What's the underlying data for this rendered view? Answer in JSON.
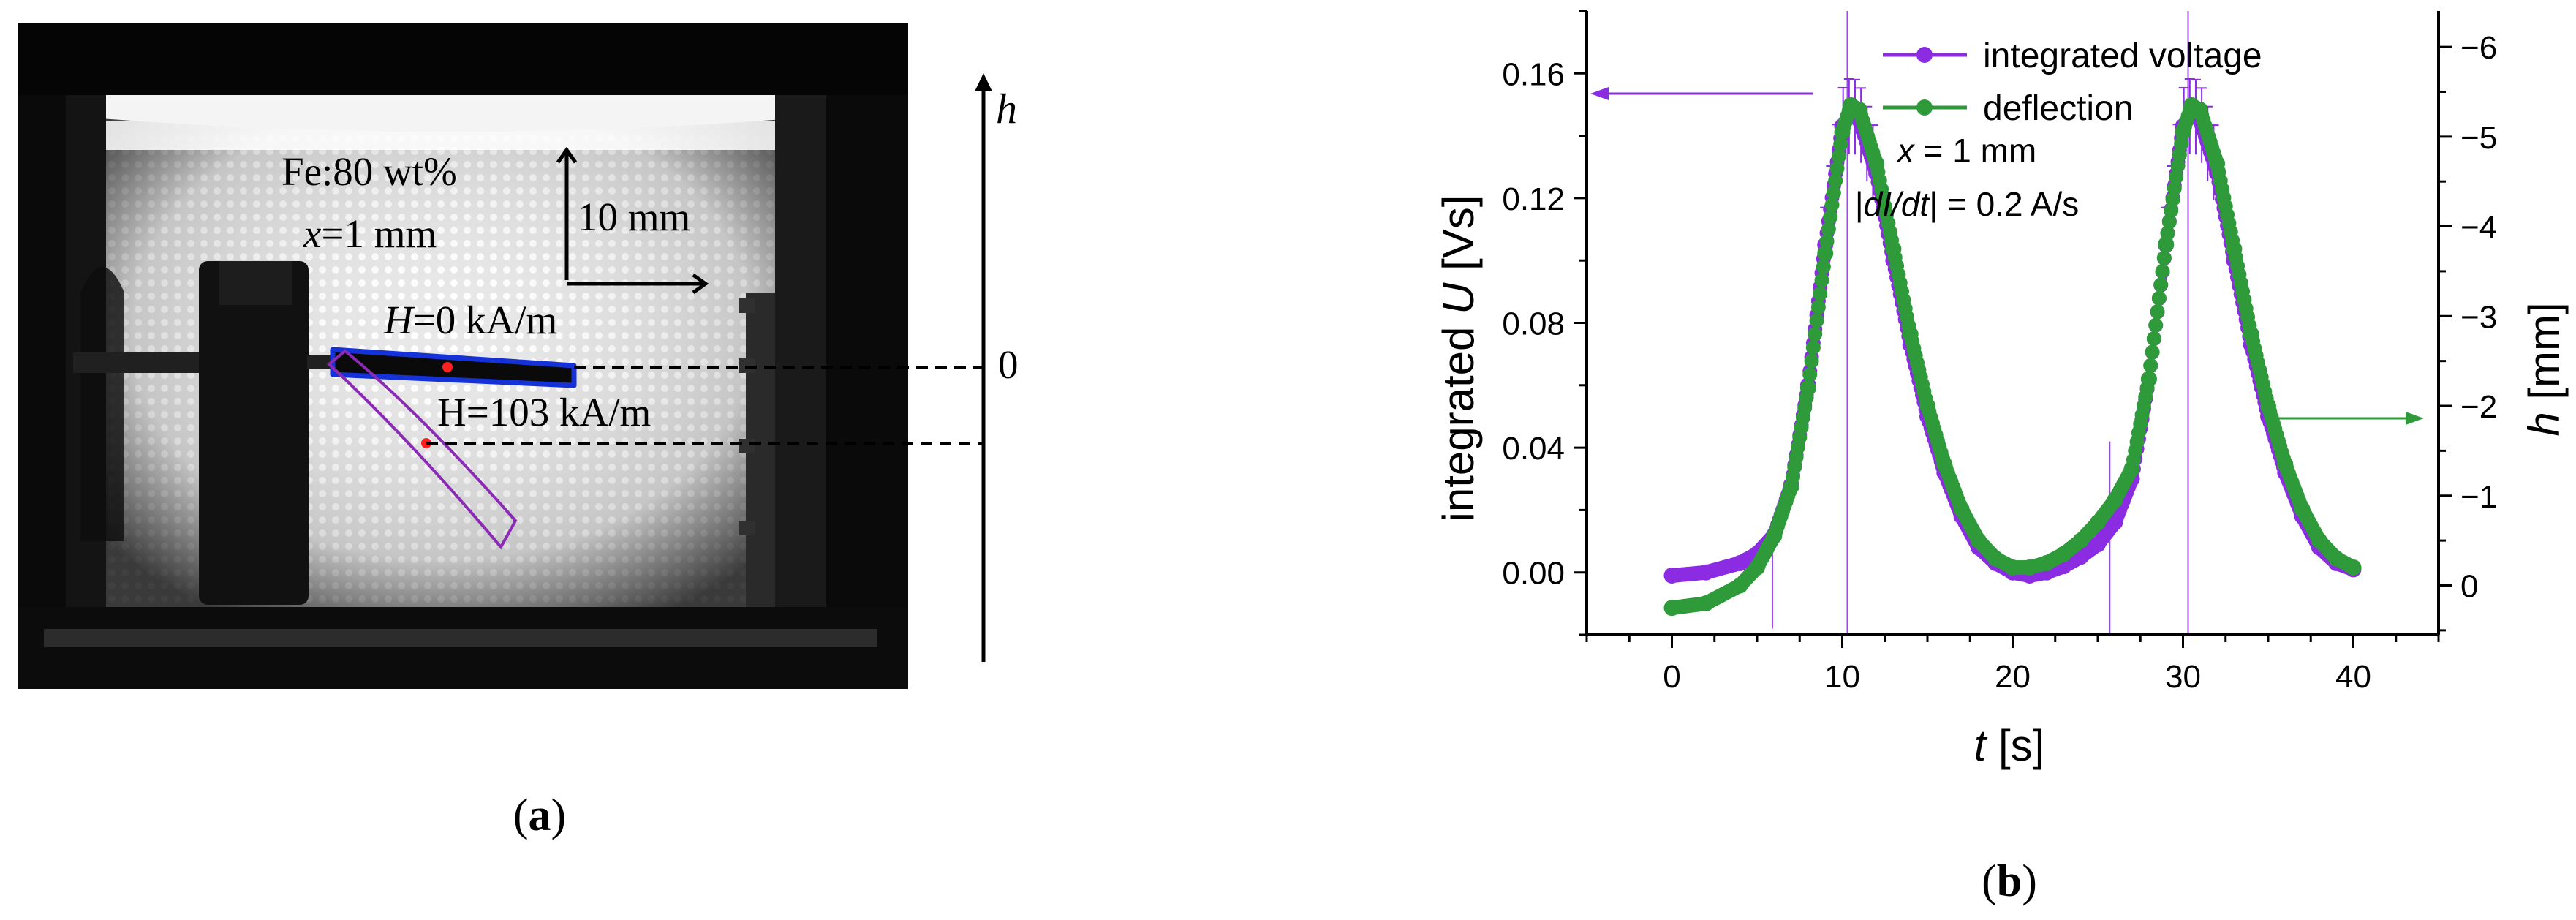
{
  "panel_a": {
    "label": "(a)",
    "material_line1": "Fe:80 wt%",
    "material_line2_var": "x",
    "material_line2_rest": "=1 mm",
    "scale_label": "10 mm",
    "field_zero_var": "H",
    "field_zero_rest": "=0 kA/m",
    "field_high": "H=103 kA/m",
    "axis_var": "h",
    "axis_zero": "0"
  },
  "panel_b": {
    "label": "(b)",
    "annotation_line1_var": "x",
    "annotation_line1_rest": " = 1 mm",
    "annotation_line2_pre": "|",
    "annotation_line2_var": "dI/dt",
    "annotation_line2_rest": "| = 0.2 A/s"
  },
  "chart_data": {
    "type": "line",
    "xlabel_var": "t",
    "xlabel_unit": " [s]",
    "ylabel_left_pre": "integrated ",
    "ylabel_left_var": "U",
    "ylabel_left_unit": " [Vs]",
    "ylabel_right_var": "h",
    "ylabel_right_unit": " [mm]",
    "xlim": [
      -5,
      45
    ],
    "ylim_left": [
      -0.02,
      0.18
    ],
    "ylim_right": [
      0.55,
      -6.4
    ],
    "x_ticks": [
      0,
      10,
      20,
      30,
      40
    ],
    "y_ticks_left": [
      "0.00",
      "0.04",
      "0.08",
      "0.12",
      "0.16"
    ],
    "y_ticks_right": [
      0,
      -1,
      -2,
      -3,
      -4,
      -5,
      -6
    ],
    "legend_position": "top-right",
    "colors": {
      "voltage": "#8B2BE2",
      "deflection": "#2E9A3A",
      "axis": "#000000"
    },
    "series": [
      {
        "name": "integrated voltage",
        "axis": "left",
        "x": [
          0,
          2,
          4,
          5,
          6,
          7,
          8,
          9,
          10,
          10.5,
          11,
          12,
          13,
          14,
          15,
          16,
          17,
          18,
          19,
          20,
          21,
          22,
          23,
          24,
          25,
          26,
          27,
          28,
          29,
          30,
          30.5,
          31,
          32,
          33,
          34,
          35,
          36,
          37,
          38,
          39,
          40
        ],
        "y": [
          -0.001,
          0.0,
          0.003,
          0.006,
          0.012,
          0.028,
          0.06,
          0.105,
          0.143,
          0.147,
          0.145,
          0.128,
          0.1,
          0.073,
          0.05,
          0.032,
          0.018,
          0.008,
          0.003,
          0.0,
          -0.001,
          0.0,
          0.002,
          0.005,
          0.009,
          0.016,
          0.03,
          0.062,
          0.105,
          0.143,
          0.147,
          0.145,
          0.128,
          0.1,
          0.073,
          0.05,
          0.032,
          0.018,
          0.008,
          0.003,
          0.001
        ]
      },
      {
        "name": "deflection",
        "axis": "right",
        "x": [
          0,
          2,
          4,
          5,
          6,
          7,
          8,
          9,
          10,
          10.5,
          11,
          12,
          13,
          14,
          15,
          16,
          17,
          18,
          19,
          20,
          21,
          22,
          23,
          24,
          25,
          26,
          27,
          28,
          29,
          30,
          30.5,
          31,
          32,
          33,
          34,
          35,
          36,
          37,
          38,
          39,
          40
        ],
        "y": [
          0.25,
          0.2,
          0.0,
          -0.2,
          -0.55,
          -1.1,
          -2.2,
          -3.7,
          -5.05,
          -5.35,
          -5.3,
          -4.7,
          -3.75,
          -2.8,
          -2.0,
          -1.35,
          -0.85,
          -0.5,
          -0.3,
          -0.2,
          -0.2,
          -0.25,
          -0.35,
          -0.5,
          -0.7,
          -0.95,
          -1.3,
          -2.3,
          -3.8,
          -5.05,
          -5.35,
          -5.3,
          -4.7,
          -3.75,
          -2.8,
          -2.0,
          -1.35,
          -0.85,
          -0.5,
          -0.3,
          -0.2
        ]
      }
    ],
    "error_spikes": [
      {
        "x": 5.9,
        "y": [
          -0.018,
          0.017
        ]
      },
      {
        "x": 10.3,
        "y": [
          -0.02,
          0.18
        ]
      },
      {
        "x": 25.7,
        "y": [
          -0.02,
          0.042
        ]
      },
      {
        "x": 30.3,
        "y": [
          -0.02,
          0.18
        ]
      }
    ]
  }
}
